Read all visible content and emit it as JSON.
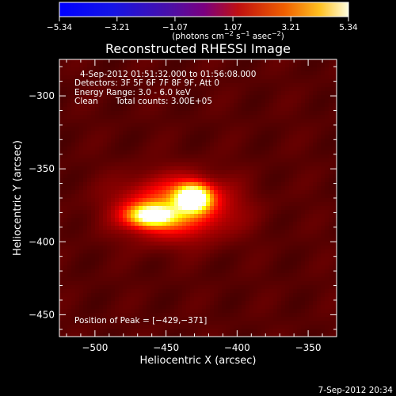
{
  "colorbar": {
    "tick_labels": [
      "−5.34",
      "−3.21",
      "−1.07",
      "1.07",
      "3.21",
      "5.34"
    ],
    "tick_values": [
      -5.34,
      -3.21,
      -1.07,
      1.07,
      3.21,
      5.34
    ],
    "range": [
      -5.34,
      5.34
    ],
    "units_prefix": "(photons cm",
    "units_exp1": "−2",
    "units_mid": " s",
    "units_exp2": "−1",
    "units_mid2": " asec",
    "units_exp3": "−2",
    "units_suffix": ")"
  },
  "title": "Reconstructed RHESSI Image",
  "info": {
    "time_range": "4-Sep-2012 01:51:32.000 to 01:56:08.000",
    "detectors": "Detectors: 3F 5F 6F 7F 8F 9F, Att 0",
    "energy": "Energy Range: 3.0 - 6.0 keV",
    "clean": "Clean",
    "counts": "Total counts: 3.00E+05"
  },
  "peak_label": "Position of Peak = [−429,−371]",
  "timestamp": "7-Sep-2012 20:34",
  "chart_data": {
    "type": "heatmap",
    "xlabel": "Heliocentric X (arcsec)",
    "ylabel": "Heliocentric Y (arcsec)",
    "xlim": [
      -525,
      -330
    ],
    "ylim": [
      -465,
      -275
    ],
    "x_ticks": [
      -500,
      -450,
      -400,
      -350
    ],
    "y_ticks": [
      -300,
      -350,
      -400,
      -450
    ],
    "x_tick_labels": [
      "−500",
      "−450",
      "−400",
      "−350"
    ],
    "y_tick_labels": [
      "−300",
      "−350",
      "−400",
      "−450"
    ],
    "peak": [
      -429,
      -371
    ],
    "sources": [
      {
        "x": -431,
        "y": -370,
        "sx": 8,
        "sy": 6,
        "amp": 1.0
      },
      {
        "x": -460,
        "y": -382,
        "sx": 11,
        "sy": 5,
        "amp": 0.8
      },
      {
        "x": -443,
        "y": -377,
        "sx": 26,
        "sy": 14,
        "amp": 0.45
      }
    ],
    "background": 0.16
  }
}
